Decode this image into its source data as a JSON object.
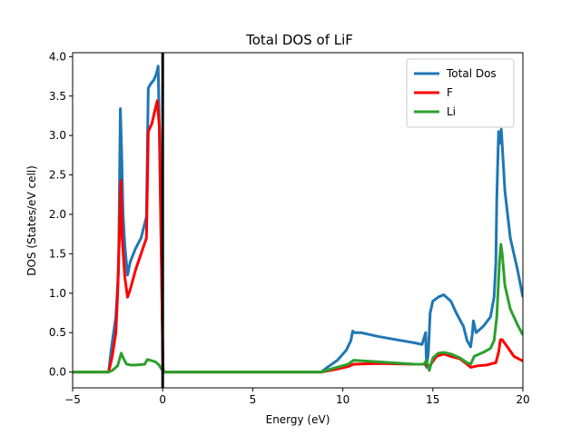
{
  "chart_data": {
    "type": "line",
    "title": "Total DOS of LiF",
    "xlabel": "Energy (eV)",
    "ylabel": "DOS (States/eV cell)",
    "xlim": [
      -5,
      20
    ],
    "ylim": [
      -0.2,
      4.05
    ],
    "xticks": [
      -5,
      0,
      5,
      10,
      15,
      20
    ],
    "xtick_labels": [
      "−5",
      "0",
      "5",
      "10",
      "15",
      "20"
    ],
    "yticks": [
      0.0,
      0.5,
      1.0,
      1.5,
      2.0,
      2.5,
      3.0,
      3.5,
      4.0
    ],
    "ytick_labels": [
      "0.0",
      "0.5",
      "1.0",
      "1.5",
      "2.0",
      "2.5",
      "3.0",
      "3.5",
      "4.0"
    ],
    "legend_position": "top-right",
    "fermi_level": 0,
    "fermi_line_color": "#000000",
    "series": [
      {
        "name": "Total Dos",
        "color": "#1f77b4",
        "x": [
          -5,
          -3.0,
          -2.85,
          -2.6,
          -2.45,
          -2.35,
          -2.28,
          -2.2,
          -2.1,
          -1.95,
          -1.8,
          -1.5,
          -1.2,
          -0.9,
          -0.8,
          -0.65,
          -0.5,
          -0.35,
          -0.25,
          -0.18,
          -0.08,
          0.0,
          0.02,
          0.05,
          8.8,
          9.2,
          9.7,
          10.2,
          10.45,
          10.55,
          10.65,
          11.0,
          12.0,
          13.0,
          14.0,
          14.4,
          14.6,
          14.65,
          14.75,
          14.85,
          15.0,
          15.3,
          15.6,
          16.0,
          16.3,
          16.7,
          16.9,
          17.1,
          17.2,
          17.25,
          17.4,
          17.8,
          18.2,
          18.4,
          18.5,
          18.55,
          18.65,
          18.72,
          18.8,
          19.0,
          19.3,
          19.7,
          20.0
        ],
        "y": [
          0.0,
          0.0,
          0.3,
          0.7,
          1.3,
          3.34,
          2.8,
          2.0,
          1.6,
          1.23,
          1.4,
          1.57,
          1.7,
          1.97,
          3.6,
          3.66,
          3.7,
          3.78,
          3.88,
          3.0,
          1.5,
          0.3,
          0.05,
          0.0,
          0.0,
          0.07,
          0.15,
          0.28,
          0.4,
          0.52,
          0.5,
          0.5,
          0.45,
          0.41,
          0.37,
          0.35,
          0.5,
          0.06,
          0.25,
          0.75,
          0.9,
          0.95,
          0.98,
          0.9,
          0.75,
          0.58,
          0.4,
          0.32,
          0.5,
          0.65,
          0.5,
          0.58,
          0.7,
          0.95,
          1.4,
          2.2,
          3.05,
          2.9,
          3.08,
          2.3,
          1.7,
          1.3,
          0.95
        ]
      },
      {
        "name": "F",
        "color": "#ff0000",
        "x": [
          -5,
          -3.0,
          -2.8,
          -2.6,
          -2.5,
          -2.38,
          -2.32,
          -2.25,
          -2.1,
          -1.95,
          -1.8,
          -1.5,
          -1.2,
          -0.9,
          -0.8,
          -0.6,
          -0.45,
          -0.3,
          -0.18,
          -0.08,
          0.0,
          0.02,
          0.05,
          8.8,
          9.5,
          10.3,
          10.6,
          12.0,
          14.0,
          14.5,
          14.8,
          15.2,
          15.6,
          16.0,
          16.5,
          16.9,
          17.1,
          17.5,
          18.0,
          18.5,
          18.65,
          18.75,
          18.85,
          19.2,
          19.5,
          20.0
        ],
        "y": [
          0.0,
          0.0,
          0.2,
          0.5,
          1.0,
          1.95,
          2.43,
          1.7,
          1.2,
          0.95,
          1.05,
          1.3,
          1.5,
          1.7,
          3.05,
          3.15,
          3.3,
          3.44,
          3.1,
          1.6,
          0.3,
          0.05,
          0.0,
          0.0,
          0.03,
          0.07,
          0.1,
          0.11,
          0.1,
          0.1,
          0.07,
          0.2,
          0.23,
          0.2,
          0.17,
          0.1,
          0.06,
          0.08,
          0.09,
          0.12,
          0.25,
          0.41,
          0.41,
          0.3,
          0.2,
          0.14
        ]
      },
      {
        "name": "Li",
        "color": "#2ca02c",
        "x": [
          -5,
          -3.0,
          -2.8,
          -2.5,
          -2.3,
          -2.15,
          -2.0,
          -1.8,
          -1.5,
          -1.0,
          -0.85,
          -0.7,
          -0.4,
          -0.2,
          -0.1,
          0.0,
          0.05,
          8.8,
          9.5,
          10.3,
          10.6,
          12.0,
          14.0,
          14.5,
          14.65,
          14.8,
          15.0,
          15.3,
          15.6,
          16.0,
          16.5,
          16.9,
          17.1,
          17.2,
          17.3,
          17.8,
          18.2,
          18.4,
          18.55,
          18.7,
          18.78,
          18.85,
          19.0,
          19.3,
          19.7,
          20.0
        ],
        "y": [
          0.0,
          0.0,
          0.02,
          0.08,
          0.24,
          0.16,
          0.1,
          0.09,
          0.09,
          0.1,
          0.16,
          0.15,
          0.13,
          0.09,
          0.05,
          0.02,
          0.0,
          0.0,
          0.05,
          0.1,
          0.15,
          0.13,
          0.1,
          0.1,
          0.15,
          0.02,
          0.18,
          0.24,
          0.25,
          0.23,
          0.18,
          0.12,
          0.1,
          0.15,
          0.2,
          0.25,
          0.3,
          0.4,
          0.7,
          1.4,
          1.62,
          1.5,
          1.1,
          0.8,
          0.6,
          0.47
        ]
      }
    ]
  }
}
